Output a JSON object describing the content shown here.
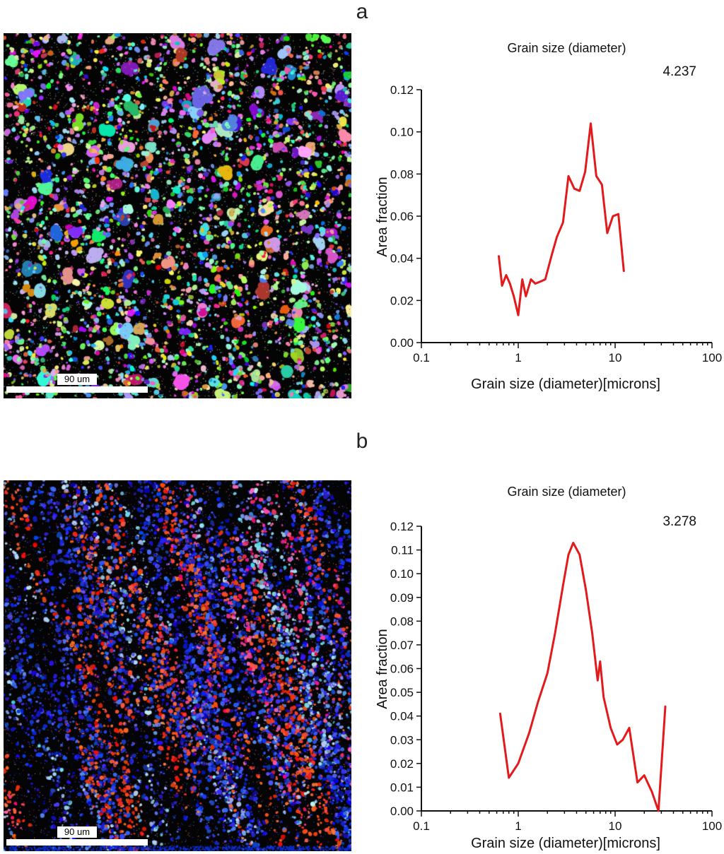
{
  "figure": {
    "background": "#ffffff"
  },
  "panels": [
    {
      "label": "a",
      "micrograph": {
        "scale_bar_label": "90 um",
        "style": "rainbow"
      }
    },
    {
      "label": "b",
      "micrograph": {
        "scale_bar_label": "90 um",
        "style": "blue-red"
      }
    }
  ],
  "chart_data": [
    {
      "type": "line",
      "title": "Grain size (diameter)",
      "annotation": "4.237",
      "xlabel": "Grain size (diameter)[microns]",
      "ylabel": "Area fraction",
      "x_scale": "log",
      "xlim": [
        0.1,
        100
      ],
      "ylim": [
        0,
        0.12
      ],
      "x_ticks": [
        0.1,
        1,
        10,
        100
      ],
      "x_tick_labels": [
        "0.1",
        "1",
        "10",
        "100"
      ],
      "y_ticks": [
        0,
        0.02,
        0.04,
        0.06,
        0.08,
        0.1,
        0.12
      ],
      "y_tick_labels": [
        "0.00",
        "0.02",
        "0.04",
        "0.06",
        "0.08",
        "0.10",
        "0.12"
      ],
      "line_color": "#e31a1c",
      "legend": "none",
      "grid": false,
      "x": [
        0.63,
        0.68,
        0.75,
        0.82,
        0.9,
        1.0,
        1.1,
        1.2,
        1.35,
        1.5,
        1.7,
        1.9,
        2.2,
        2.5,
        2.9,
        3.3,
        3.8,
        4.3,
        4.9,
        5.6,
        6.4,
        7.3,
        8.3,
        9.5,
        10.8,
        12.3
      ],
      "y": [
        0.041,
        0.027,
        0.032,
        0.028,
        0.022,
        0.013,
        0.03,
        0.022,
        0.03,
        0.028,
        0.029,
        0.03,
        0.041,
        0.05,
        0.057,
        0.079,
        0.073,
        0.072,
        0.081,
        0.104,
        0.079,
        0.075,
        0.052,
        0.06,
        0.061,
        0.034
      ]
    },
    {
      "type": "line",
      "title": "Grain size (diameter)",
      "annotation": "3.278",
      "xlabel": "Grain size (diameter)[microns]",
      "ylabel": "Area fraction",
      "x_scale": "log",
      "xlim": [
        0.1,
        100
      ],
      "ylim": [
        0,
        0.12
      ],
      "x_ticks": [
        0.1,
        1,
        10,
        100
      ],
      "x_tick_labels": [
        "0.1",
        "1",
        "10",
        "100"
      ],
      "y_ticks": [
        0,
        0.01,
        0.02,
        0.03,
        0.04,
        0.05,
        0.06,
        0.07,
        0.08,
        0.09,
        0.1,
        0.11,
        0.12
      ],
      "y_tick_labels": [
        "0.00",
        "0.01",
        "0.02",
        "0.03",
        "0.04",
        "0.05",
        "0.06",
        "0.07",
        "0.08",
        "0.09",
        "0.10",
        "0.11",
        "0.12"
      ],
      "line_color": "#e31a1c",
      "legend": "none",
      "grid": false,
      "x": [
        0.65,
        0.8,
        1.0,
        1.3,
        1.6,
        2.0,
        2.4,
        2.9,
        3.3,
        3.7,
        4.3,
        5.0,
        5.8,
        6.6,
        7.0,
        7.6,
        9.0,
        10.5,
        12.0,
        14.0,
        17.0,
        20.0,
        24.0,
        28.0,
        33.0
      ],
      "y": [
        0.041,
        0.014,
        0.02,
        0.033,
        0.046,
        0.058,
        0.075,
        0.095,
        0.108,
        0.113,
        0.108,
        0.093,
        0.075,
        0.055,
        0.063,
        0.048,
        0.035,
        0.028,
        0.03,
        0.035,
        0.012,
        0.015,
        0.008,
        0.0,
        0.044
      ]
    }
  ]
}
